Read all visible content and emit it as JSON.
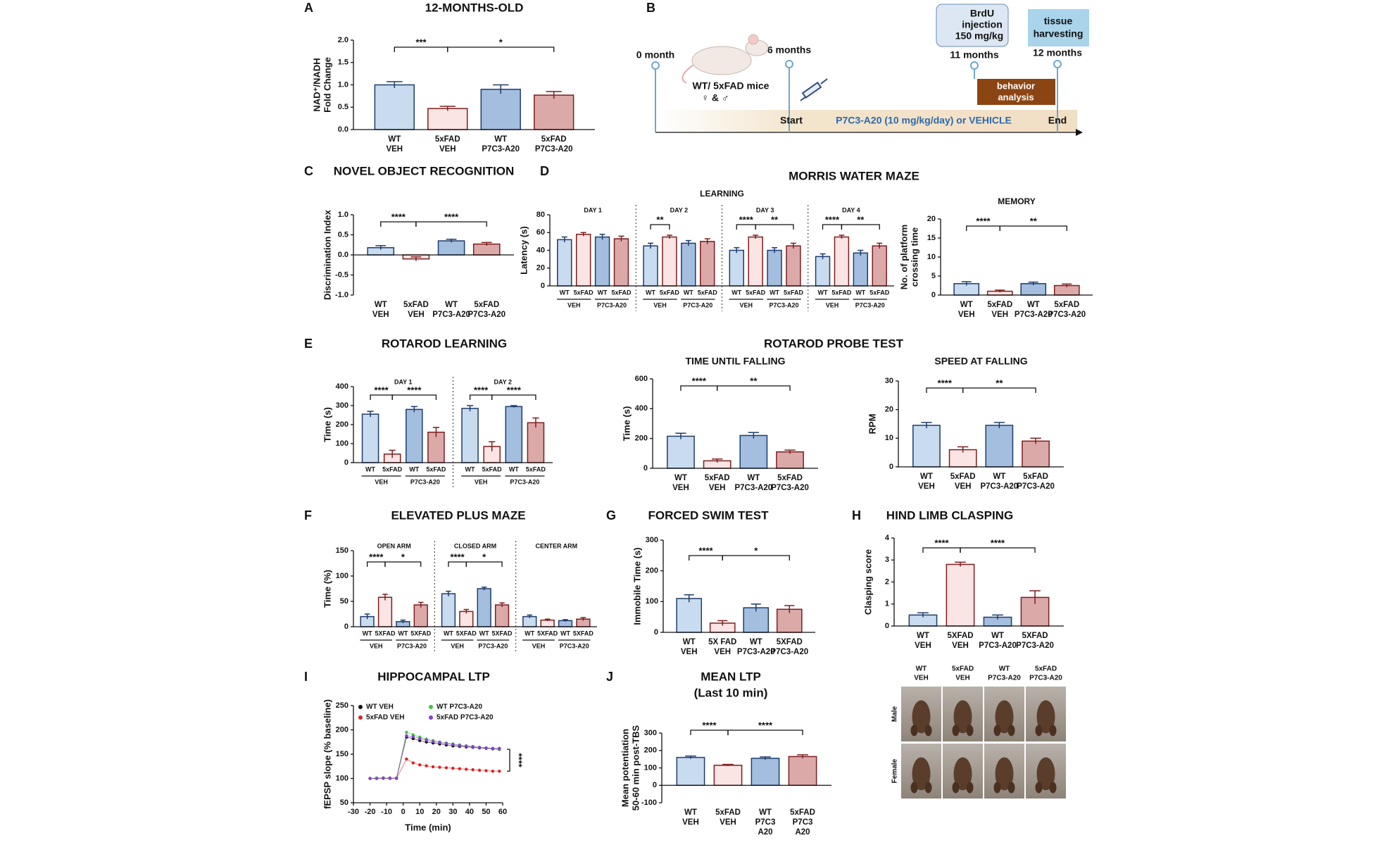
{
  "chart_data": [
    {
      "type": "bar",
      "panel": "A",
      "title": "12-MONTHS-OLD",
      "ylabel": [
        "NAD⁺/NADH",
        "Fold Change"
      ],
      "ylim": [
        0,
        2
      ],
      "yticks": [
        {
          "value": 0,
          "label": "0.0"
        },
        {
          "value": 0.5,
          "label": "0.5"
        },
        {
          "value": 1,
          "label": "1.0"
        },
        {
          "value": 1.5,
          "label": "1.5"
        },
        {
          "value": 2,
          "label": "2.0"
        }
      ],
      "categories": [
        [
          "WT",
          "VEH"
        ],
        [
          "5xFAD",
          "VEH"
        ],
        [
          "WT",
          "P7C3-A20"
        ],
        [
          "5xFAD",
          "P7C3-A20"
        ]
      ],
      "colors": [
        "#c9dbee",
        "#fbe4e4",
        "#a3bedf",
        "#dca9a9"
      ],
      "edge_colors": [
        "#1d3c6b",
        "#7d1d1d",
        "#1d3c6b",
        "#7d1d1d"
      ],
      "groups": [
        {
          "values": [
            1.0,
            0.47,
            0.9,
            0.77
          ],
          "errors": [
            0.07,
            0.05,
            0.1,
            0.08
          ],
          "significance": [
            {
              "text": "***",
              "from": 0,
              "to": 1
            },
            {
              "text": "*",
              "from": 1,
              "to": 3
            }
          ]
        }
      ]
    },
    {
      "type": "bar",
      "panel": "C",
      "title": "NOVEL OBJECT RECOGNITION",
      "ylabel": [
        "Discrimination Index"
      ],
      "ylim": [
        -1,
        1
      ],
      "yticks": [
        {
          "value": -1,
          "label": "-1.0"
        },
        {
          "value": -0.5,
          "label": "-0.5"
        },
        {
          "value": 0,
          "label": "0.0"
        },
        {
          "value": 0.5,
          "label": "0.5"
        },
        {
          "value": 1,
          "label": "1.0"
        }
      ],
      "categories": [
        [
          "WT",
          "VEH"
        ],
        [
          "5xFAD",
          "VEH"
        ],
        [
          "WT",
          "P7C3-A20"
        ],
        [
          "5xFAD",
          "P7C3-A20"
        ]
      ],
      "colors": [
        "#c9dbee",
        "#fbe4e4",
        "#a3bedf",
        "#dca9a9"
      ],
      "edge_colors": [
        "#1d3c6b",
        "#7d1d1d",
        "#1d3c6b",
        "#7d1d1d"
      ],
      "groups": [
        {
          "values": [
            0.18,
            -0.1,
            0.35,
            0.27
          ],
          "errors": [
            0.05,
            0.05,
            0.04,
            0.04
          ],
          "significance": [
            {
              "text": "****",
              "from": 0,
              "to": 1
            },
            {
              "text": "****",
              "from": 1,
              "to": 3
            }
          ]
        }
      ]
    },
    {
      "type": "bar",
      "panel": "D",
      "group_title": "MORRIS WATER MAZE",
      "title": "LEARNING",
      "ylabel": [
        "Latency (s)"
      ],
      "ylim": [
        0,
        80
      ],
      "yticks": [
        0,
        20,
        40,
        60,
        80
      ],
      "bar_labels": [
        "WT",
        "5xFAD",
        "WT",
        "5xFAD"
      ],
      "treatment_labels": [
        "VEH",
        "P7C3-A20"
      ],
      "colors": [
        "#c9dbee",
        "#fbe4e4",
        "#a3bedf",
        "#dca9a9"
      ],
      "edge_colors": [
        "#1d3c6b",
        "#7d1d1d",
        "#1d3c6b",
        "#7d1d1d"
      ],
      "groups": [
        {
          "label": "DAY 1",
          "values": [
            52,
            58,
            55,
            53
          ],
          "errors": [
            3,
            2,
            3,
            3
          ],
          "significance": []
        },
        {
          "label": "DAY 2",
          "values": [
            45,
            55,
            48,
            50
          ],
          "errors": [
            3,
            2,
            3,
            3
          ],
          "significance": [
            {
              "text": "**",
              "from": 0,
              "to": 1
            }
          ]
        },
        {
          "label": "DAY 3",
          "values": [
            40,
            55,
            40,
            45
          ],
          "errors": [
            3,
            2,
            3,
            3
          ],
          "significance": [
            {
              "text": "****",
              "from": 0,
              "to": 1
            },
            {
              "text": "**",
              "from": 1,
              "to": 3
            }
          ]
        },
        {
          "label": "DAY 4",
          "values": [
            33,
            55,
            37,
            45
          ],
          "errors": [
            3,
            2,
            3,
            3
          ],
          "significance": [
            {
              "text": "****",
              "from": 0,
              "to": 1
            },
            {
              "text": "**",
              "from": 1,
              "to": 3
            }
          ]
        }
      ]
    },
    {
      "type": "bar",
      "title": "MEMORY",
      "ylabel": [
        "No. of platform",
        "crossing time"
      ],
      "ylim": [
        0,
        20
      ],
      "yticks": [
        0,
        5,
        10,
        15,
        20
      ],
      "categories": [
        [
          "WT",
          "VEH"
        ],
        [
          "5xFAD",
          "VEH"
        ],
        [
          "WT",
          "P7C3-A20"
        ],
        [
          "5xFAD",
          "P7C3-A20"
        ]
      ],
      "colors": [
        "#c9dbee",
        "#fbe4e4",
        "#a3bedf",
        "#dca9a9"
      ],
      "edge_colors": [
        "#1d3c6b",
        "#7d1d1d",
        "#1d3c6b",
        "#7d1d1d"
      ],
      "groups": [
        {
          "values": [
            3,
            1,
            3,
            2.5
          ],
          "errors": [
            0.5,
            0.3,
            0.4,
            0.4
          ],
          "significance": [
            {
              "text": "****",
              "from": 0,
              "to": 1
            },
            {
              "text": "**",
              "from": 1,
              "to": 3
            }
          ]
        }
      ]
    },
    {
      "type": "bar",
      "panel": "E",
      "title": "ROTAROD LEARNING",
      "ylabel": [
        "Time (s)"
      ],
      "ylim": [
        0,
        400
      ],
      "yticks": [
        0,
        100,
        200,
        300,
        400
      ],
      "bar_labels": [
        "WT",
        "5xFAD",
        "WT",
        "5xFAD"
      ],
      "treatment_labels": [
        "VEH",
        "P7C3-A20"
      ],
      "colors": [
        "#c9dbee",
        "#fbe4e4",
        "#a3bedf",
        "#dca9a9"
      ],
      "edge_colors": [
        "#1d3c6b",
        "#7d1d1d",
        "#1d3c6b",
        "#7d1d1d"
      ],
      "groups": [
        {
          "label": "DAY 1",
          "values": [
            255,
            45,
            280,
            160
          ],
          "errors": [
            15,
            20,
            15,
            25
          ],
          "significance": [
            {
              "text": "****",
              "from": 0,
              "to": 1
            },
            {
              "text": "****",
              "from": 1,
              "to": 3
            }
          ]
        },
        {
          "label": "DAY 2",
          "values": [
            285,
            85,
            295,
            210
          ],
          "errors": [
            15,
            25,
            5,
            25
          ],
          "significance": [
            {
              "text": "****",
              "from": 0,
              "to": 1
            },
            {
              "text": "****",
              "from": 1,
              "to": 3
            }
          ]
        }
      ]
    },
    {
      "type": "bar",
      "group_title": "ROTAROD PROBE TEST",
      "title": "TIME UNTIL FALLING",
      "ylabel": [
        "Time (s)"
      ],
      "ylim": [
        0,
        600
      ],
      "yticks": [
        0,
        200,
        400,
        600
      ],
      "categories": [
        [
          "WT",
          "VEH"
        ],
        [
          "5xFAD",
          "VEH"
        ],
        [
          "WT",
          "P7C3-A20"
        ],
        [
          "5xFAD",
          "P7C3-A20"
        ]
      ],
      "colors": [
        "#c9dbee",
        "#fbe4e4",
        "#a3bedf",
        "#dca9a9"
      ],
      "edge_colors": [
        "#1d3c6b",
        "#7d1d1d",
        "#1d3c6b",
        "#7d1d1d"
      ],
      "groups": [
        {
          "values": [
            215,
            50,
            220,
            110
          ],
          "errors": [
            20,
            12,
            20,
            12
          ],
          "significance": [
            {
              "text": "****",
              "from": 0,
              "to": 1
            },
            {
              "text": "**",
              "from": 1,
              "to": 3
            }
          ]
        }
      ]
    },
    {
      "type": "bar",
      "title": "SPEED AT FALLING",
      "ylabel": [
        "RPM"
      ],
      "ylim": [
        0,
        30
      ],
      "yticks": [
        0,
        10,
        20,
        30
      ],
      "categories": [
        [
          "WT",
          "VEH"
        ],
        [
          "5xFAD",
          "VEH"
        ],
        [
          "WT",
          "P7C3-A20"
        ],
        [
          "5xFAD",
          "P7C3-A20"
        ]
      ],
      "colors": [
        "#c9dbee",
        "#fbe4e4",
        "#a3bedf",
        "#dca9a9"
      ],
      "edge_colors": [
        "#1d3c6b",
        "#7d1d1d",
        "#1d3c6b",
        "#7d1d1d"
      ],
      "groups": [
        {
          "values": [
            14.5,
            6,
            14.5,
            9
          ],
          "errors": [
            1,
            1,
            1,
            1
          ],
          "significance": [
            {
              "text": "****",
              "from": 0,
              "to": 1
            },
            {
              "text": "**",
              "from": 1,
              "to": 3
            }
          ]
        }
      ]
    },
    {
      "type": "bar",
      "panel": "F",
      "title": "ELEVATED PLUS MAZE",
      "ylabel": [
        "Time (%)"
      ],
      "ylim": [
        0,
        150
      ],
      "yticks": [
        0,
        50,
        100,
        150
      ],
      "bar_labels": [
        "WT",
        "5XFAD",
        "WT",
        "5XFAD"
      ],
      "treatment_labels": [
        "VEH",
        "P7C3-A20"
      ],
      "colors": [
        "#c9dbee",
        "#fbe4e4",
        "#a3bedf",
        "#dca9a9"
      ],
      "edge_colors": [
        "#1d3c6b",
        "#7d1d1d",
        "#1d3c6b",
        "#7d1d1d"
      ],
      "groups": [
        {
          "label": "OPEN ARM",
          "values": [
            20,
            58,
            10,
            43
          ],
          "errors": [
            5,
            6,
            3,
            5
          ],
          "significance": [
            {
              "text": "****",
              "from": 0,
              "to": 1
            },
            {
              "text": "*",
              "from": 1,
              "to": 3
            }
          ]
        },
        {
          "label": "CLOSED ARM",
          "values": [
            65,
            30,
            75,
            43
          ],
          "errors": [
            5,
            4,
            3,
            4
          ],
          "significance": [
            {
              "text": "****",
              "from": 0,
              "to": 1
            },
            {
              "text": "*",
              "from": 1,
              "to": 3
            }
          ]
        },
        {
          "label": "CENTER ARM",
          "values": [
            20,
            13,
            12,
            15
          ],
          "errors": [
            3,
            2,
            2,
            3
          ],
          "significance": []
        }
      ]
    },
    {
      "type": "bar",
      "panel": "G",
      "title": "FORCED SWIM TEST",
      "ylabel": [
        "Immobile Time (s)"
      ],
      "ylim": [
        0,
        300
      ],
      "yticks": [
        0,
        100,
        200,
        300
      ],
      "categories": [
        [
          "WT",
          "VEH"
        ],
        [
          "5X FAD",
          "VEH"
        ],
        [
          "WT",
          "P7C3-A20"
        ],
        [
          "5XFAD",
          "P7C3-A20"
        ]
      ],
      "colors": [
        "#c9dbee",
        "#fbe4e4",
        "#a3bedf",
        "#dca9a9"
      ],
      "edge_colors": [
        "#1d3c6b",
        "#7d1d1d",
        "#1d3c6b",
        "#7d1d1d"
      ],
      "groups": [
        {
          "values": [
            110,
            30,
            80,
            75
          ],
          "errors": [
            12,
            8,
            12,
            12
          ],
          "significance": [
            {
              "text": "****",
              "from": 0,
              "to": 1
            },
            {
              "text": "*",
              "from": 1,
              "to": 3
            }
          ]
        }
      ]
    },
    {
      "type": "bar",
      "panel": "H",
      "title": "HIND LIMB CLASPING",
      "ylabel": [
        "Clasping score"
      ],
      "ylim": [
        0,
        4
      ],
      "yticks": [
        0,
        1,
        2,
        3,
        4
      ],
      "categories": [
        [
          "WT",
          "VEH"
        ],
        [
          "5XFAD",
          "VEH"
        ],
        [
          "WT",
          "P7C3-A20"
        ],
        [
          "5XFAD",
          "P7C3-A20"
        ]
      ],
      "colors": [
        "#c9dbee",
        "#fbe4e4",
        "#a3bedf",
        "#dca9a9"
      ],
      "edge_colors": [
        "#1d3c6b",
        "#7d1d1d",
        "#1d3c6b",
        "#7d1d1d"
      ],
      "groups": [
        {
          "values": [
            0.5,
            2.8,
            0.4,
            1.3
          ],
          "errors": [
            0.1,
            0.1,
            0.1,
            0.3
          ],
          "significance": [
            {
              "text": "****",
              "from": 0,
              "to": 1
            },
            {
              "text": "****",
              "from": 1,
              "to": 3
            }
          ]
        }
      ]
    },
    {
      "type": "line",
      "panel": "I",
      "title": "HIPPOCAMPAL LTP",
      "ylabel": [
        "fEPSP slope (% baseline)"
      ],
      "xlabel": "Time (min)",
      "xlim": [
        -30,
        60
      ],
      "xticks": [
        -30,
        -20,
        -10,
        0,
        10,
        20,
        30,
        40,
        50,
        60
      ],
      "ylim": [
        50,
        250
      ],
      "yticks": [
        50,
        100,
        150,
        200,
        250
      ],
      "annotation": "****",
      "x": [
        -20,
        -16,
        -12,
        -8,
        -4,
        2,
        6,
        10,
        14,
        18,
        22,
        26,
        30,
        34,
        38,
        42,
        46,
        50,
        54,
        58
      ],
      "series": [
        {
          "name": "WT VEH",
          "color": "#111111",
          "values": [
            100,
            100,
            101,
            100,
            101,
            185,
            182,
            178,
            175,
            173,
            171,
            169,
            167,
            166,
            165,
            164,
            163,
            162,
            161,
            160
          ]
        },
        {
          "name": "5xFAD VEH",
          "color": "#e02020",
          "values": [
            100,
            100,
            100,
            101,
            100,
            140,
            132,
            128,
            126,
            124,
            123,
            122,
            121,
            120,
            119,
            118,
            117,
            116,
            115,
            115
          ]
        },
        {
          "name": "WT P7C3-A20",
          "color": "#3ec43e",
          "values": [
            100,
            101,
            100,
            100,
            101,
            195,
            190,
            185,
            181,
            178,
            175,
            173,
            171,
            169,
            167,
            166,
            164,
            163,
            162,
            161
          ]
        },
        {
          "name": "5xFAD P7C3-A20",
          "color": "#8a3fd6",
          "values": [
            100,
            100,
            101,
            100,
            100,
            188,
            186,
            182,
            179,
            176,
            174,
            172,
            170,
            168,
            167,
            165,
            164,
            163,
            162,
            162
          ]
        }
      ]
    },
    {
      "type": "bar",
      "panel": "J",
      "title": "MEAN LTP",
      "subtitle": "(Last 10 min)",
      "ylabel": [
        "Mean potentiation",
        "50-60 min post-TBS"
      ],
      "ylim": [
        -100,
        300
      ],
      "yticks": [
        -100,
        0,
        100,
        200,
        300
      ],
      "categories": [
        [
          "WT",
          "VEH"
        ],
        [
          "5xFAD",
          "VEH"
        ],
        [
          "WT",
          "P7C3",
          "A20"
        ],
        [
          "5xFAD",
          "P7C3",
          "A20"
        ]
      ],
      "colors": [
        "#c9dbee",
        "#fbe4e4",
        "#a3bedf",
        "#dca9a9"
      ],
      "edge_colors": [
        "#1d3c6b",
        "#7d1d1d",
        "#1d3c6b",
        "#7d1d1d"
      ],
      "groups": [
        {
          "values": [
            160,
            115,
            155,
            165
          ],
          "errors": [
            8,
            5,
            8,
            10
          ],
          "significance": [
            {
              "text": "****",
              "from": 0,
              "to": 1
            },
            {
              "text": "****",
              "from": 1,
              "to": 3
            }
          ]
        }
      ]
    }
  ],
  "timeline": {
    "panel": "B",
    "start_label": "0 month",
    "mid_label": "6 months",
    "mice": "WT/ 5xFAD mice",
    "sexes": "♀ & ♂",
    "brdu": [
      "BrdU",
      "injection",
      "150 mg/kg"
    ],
    "brdu_time": "11 months",
    "harvest": [
      "tissue",
      "harvesting"
    ],
    "harvest_time": "12 months",
    "behavior": [
      "behavior",
      "analysis"
    ],
    "start": "Start",
    "treatment": "P7C3-A20 (10 mg/kg/day) or VEHICLE",
    "end": "End"
  },
  "photos": {
    "columns": [
      [
        "WT",
        "VEH"
      ],
      [
        "5xFAD",
        "VEH"
      ],
      [
        "WT",
        "P7C3-A20"
      ],
      [
        "5xFAD",
        "P7C3-A20"
      ]
    ],
    "rows": [
      "Male",
      "Female"
    ]
  }
}
